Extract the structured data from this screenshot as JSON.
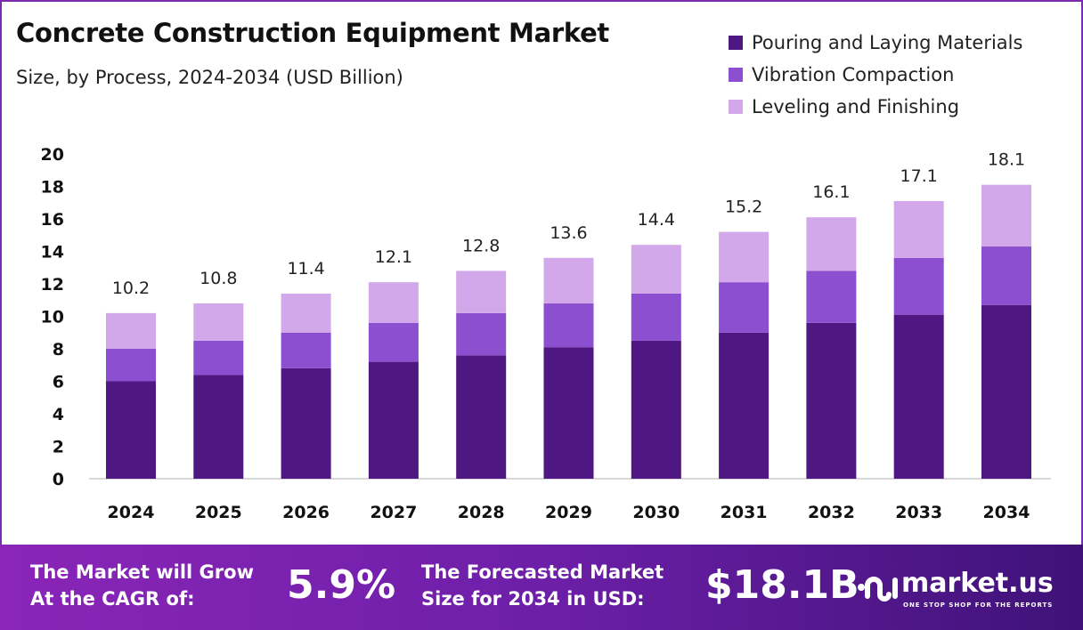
{
  "chart_data": {
    "type": "bar",
    "stacked": true,
    "title": "Concrete Construction Equipment Market",
    "subtitle": "Size, by Process, 2024-2034 (USD Billion)",
    "categories": [
      "2024",
      "2025",
      "2026",
      "2027",
      "2028",
      "2029",
      "2030",
      "2031",
      "2032",
      "2033",
      "2034"
    ],
    "series": [
      {
        "name": "Pouring and Laying Materials",
        "color": "#4e1782",
        "values": [
          6.0,
          6.4,
          6.8,
          7.2,
          7.6,
          8.1,
          8.5,
          9.0,
          9.6,
          10.1,
          10.7
        ]
      },
      {
        "name": "Vibration Compaction",
        "color": "#8b4fcf",
        "values": [
          2.0,
          2.1,
          2.2,
          2.4,
          2.6,
          2.7,
          2.9,
          3.1,
          3.2,
          3.5,
          3.6
        ]
      },
      {
        "name": "Leveling and Finishing",
        "color": "#d2a8ea",
        "values": [
          2.2,
          2.3,
          2.4,
          2.5,
          2.6,
          2.8,
          3.0,
          3.1,
          3.3,
          3.5,
          3.8
        ]
      }
    ],
    "totals": [
      "10.2",
      "10.8",
      "11.4",
      "12.1",
      "12.8",
      "13.6",
      "14.4",
      "15.2",
      "16.1",
      "17.1",
      "18.1"
    ],
    "yticks": [
      "0",
      "2",
      "4",
      "6",
      "8",
      "10",
      "12",
      "14",
      "16",
      "18",
      "20"
    ],
    "ylim": [
      0,
      20
    ],
    "grid": false,
    "legend": "top-right"
  },
  "footer": {
    "cagr_label_1": "The Market will Grow",
    "cagr_label_2": "At the CAGR of:",
    "cagr_value": "5.9%",
    "forecast_label_1": "The Forecasted Market",
    "forecast_label_2": "Size for 2034 in USD:",
    "forecast_value": "$18.1B",
    "logo_name": "market.us",
    "logo_tagline": "ONE STOP SHOP FOR THE REPORTS"
  }
}
